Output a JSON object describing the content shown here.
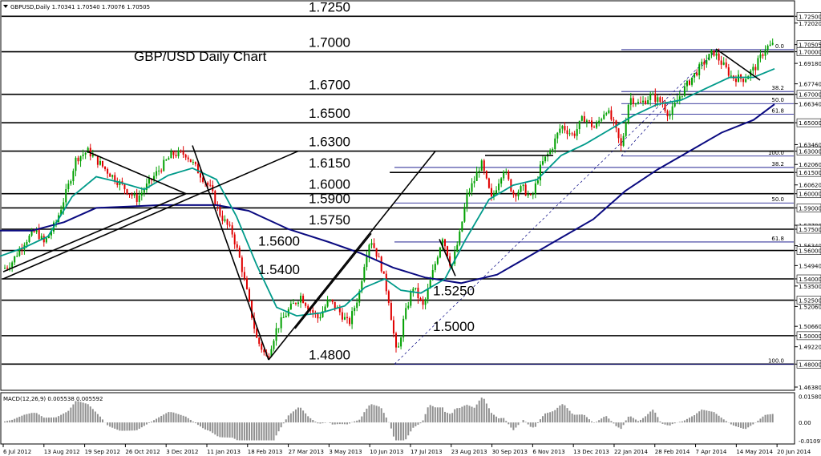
{
  "header": {
    "symbol_line": "GBPUSD,Daily  1.70341 1.70540 1.70076 1.70505",
    "menu_icon": "triangle-down-icon"
  },
  "chart_data": {
    "type": "candlestick",
    "title": "GBP/USD Daily Chart",
    "ylim": [
      1.4638,
      1.7325
    ],
    "y_ticks": [
      {
        "label": "1.72500",
        "value": 1.725,
        "boxed": true
      },
      {
        "label": "1.72020",
        "value": 1.7202,
        "boxed": false
      },
      {
        "label": "1.70505",
        "value": 1.70505,
        "boxed": true
      },
      {
        "label": "1.70000",
        "value": 1.7,
        "boxed": true
      },
      {
        "label": "1.69180",
        "value": 1.6918,
        "boxed": false
      },
      {
        "label": "1.67740",
        "value": 1.6774,
        "boxed": false
      },
      {
        "label": "1.67000",
        "value": 1.67,
        "boxed": true
      },
      {
        "label": "1.66340",
        "value": 1.6634,
        "boxed": false
      },
      {
        "label": "1.65000",
        "value": 1.65,
        "boxed": true
      },
      {
        "label": "1.63460",
        "value": 1.6346,
        "boxed": false
      },
      {
        "label": "1.63000",
        "value": 1.63,
        "boxed": true
      },
      {
        "label": "1.62060",
        "value": 1.6206,
        "boxed": false
      },
      {
        "label": "1.61500",
        "value": 1.615,
        "boxed": true
      },
      {
        "label": "1.60620",
        "value": 1.6062,
        "boxed": false
      },
      {
        "label": "1.60000",
        "value": 1.6,
        "boxed": true
      },
      {
        "label": "1.59000",
        "value": 1.59,
        "boxed": true
      },
      {
        "label": "1.57780",
        "value": 1.5778,
        "boxed": false
      },
      {
        "label": "1.57500",
        "value": 1.575,
        "boxed": true
      },
      {
        "label": "1.56340",
        "value": 1.5634,
        "boxed": false
      },
      {
        "label": "1.56000",
        "value": 1.56,
        "boxed": true
      },
      {
        "label": "1.54940",
        "value": 1.5494,
        "boxed": false
      },
      {
        "label": "1.54000",
        "value": 1.54,
        "boxed": true
      },
      {
        "label": "1.53500",
        "value": 1.535,
        "boxed": false
      },
      {
        "label": "1.52500",
        "value": 1.525,
        "boxed": true
      },
      {
        "label": "1.52060",
        "value": 1.5206,
        "boxed": false
      },
      {
        "label": "1.50660",
        "value": 1.5066,
        "boxed": false
      },
      {
        "label": "1.50000",
        "value": 1.5,
        "boxed": true
      },
      {
        "label": "1.49220",
        "value": 1.4922,
        "boxed": false
      },
      {
        "label": "1.48000",
        "value": 1.48,
        "boxed": true
      },
      {
        "label": "1.46380",
        "value": 1.4638,
        "boxed": false
      }
    ],
    "levels": [
      {
        "label": "1.7250",
        "value": 1.725,
        "x0": 0.0
      },
      {
        "label": "1.7000",
        "value": 1.7,
        "x0": 0.0
      },
      {
        "label": "1.6700",
        "value": 1.67,
        "x0": 0.0
      },
      {
        "label": "1.6500",
        "value": 1.65,
        "x0": 0.0
      },
      {
        "label": "1.6300",
        "value": 1.63,
        "x0": 0.0
      },
      {
        "label": "1.6150",
        "value": 1.615,
        "x0": 0.49
      },
      {
        "label": "1.6000",
        "value": 1.6,
        "x0": 0.0
      },
      {
        "label": "1.5900",
        "value": 1.59,
        "x0": 0.0
      },
      {
        "label": "1.5750",
        "value": 1.575,
        "x0": 0.0
      },
      {
        "label": "1.5600",
        "value": 1.56,
        "x0": 0.0
      },
      {
        "label": "1.5400",
        "value": 1.54,
        "x0": 0.0
      },
      {
        "label": "1.5250",
        "value": 1.525,
        "x0": 0.0
      },
      {
        "label": "1.5000",
        "value": 1.5,
        "x0": 0.0
      },
      {
        "label": "1.4800",
        "value": 1.48,
        "x0": 0.0
      }
    ],
    "x_dates": [
      "6 Jul 2012",
      "13 Aug 2012",
      "19 Sep 2012",
      "26 Oct 2012",
      "3 Dec 2012",
      "11 Jan 2013",
      "18 Feb 2013",
      "27 Mar 2013",
      "3 May 2013",
      "10 Jun 2013",
      "17 Jul 2013",
      "23 Aug 2013",
      "30 Sep 2013",
      "6 Nov 2013",
      "13 Dec 2013",
      "22 Jan 2014",
      "28 Feb 2014",
      "7 Apr 2014",
      "14 May 2014",
      "20 Jun 2014"
    ],
    "fib_labels": [
      {
        "label": "0.0",
        "value": 1.7015
      },
      {
        "label": "38.2",
        "value": 1.672
      },
      {
        "label": "50.0",
        "value": 1.6635
      },
      {
        "label": "61.8",
        "value": 1.656
      },
      {
        "label": "100.0",
        "value": 1.6265
      },
      {
        "label": "38.2",
        "value": 1.6185
      },
      {
        "label": "50.0",
        "value": 1.5935
      },
      {
        "label": "61.8",
        "value": 1.566
      },
      {
        "label": "100.0",
        "value": 1.48
      }
    ],
    "macd": {
      "label": "MACD(12,26,9) 0.005538 0.005592",
      "ticks": [
        {
          "label": "0.015802",
          "value": 0.015802
        },
        {
          "label": "0.00",
          "value": 0.0
        },
        {
          "label": "-0.010976",
          "value": -0.010976
        }
      ]
    },
    "price_path": [
      [
        0,
        1.545
      ],
      [
        15,
        1.552
      ],
      [
        30,
        1.566
      ],
      [
        45,
        1.574
      ],
      [
        55,
        1.565
      ],
      [
        70,
        1.58
      ],
      [
        85,
        1.605
      ],
      [
        95,
        1.625
      ],
      [
        110,
        1.63
      ],
      [
        130,
        1.618
      ],
      [
        150,
        1.607
      ],
      [
        170,
        1.596
      ],
      [
        185,
        1.607
      ],
      [
        200,
        1.618
      ],
      [
        215,
        1.628
      ],
      [
        232,
        1.628
      ],
      [
        247,
        1.616
      ],
      [
        262,
        1.604
      ],
      [
        275,
        1.585
      ],
      [
        290,
        1.572
      ],
      [
        300,
        1.552
      ],
      [
        310,
        1.525
      ],
      [
        320,
        1.498
      ],
      [
        333,
        1.484
      ],
      [
        345,
        1.505
      ],
      [
        360,
        1.518
      ],
      [
        375,
        1.528
      ],
      [
        385,
        1.52
      ],
      [
        397,
        1.512
      ],
      [
        410,
        1.525
      ],
      [
        422,
        1.518
      ],
      [
        435,
        1.508
      ],
      [
        448,
        1.53
      ],
      [
        455,
        1.553
      ],
      [
        462,
        1.569
      ],
      [
        475,
        1.55
      ],
      [
        485,
        1.525
      ],
      [
        495,
        1.485
      ],
      [
        503,
        1.51
      ],
      [
        515,
        1.535
      ],
      [
        528,
        1.52
      ],
      [
        540,
        1.545
      ],
      [
        552,
        1.57
      ],
      [
        563,
        1.548
      ],
      [
        573,
        1.57
      ],
      [
        582,
        1.598
      ],
      [
        592,
        1.61
      ],
      [
        600,
        1.622
      ],
      [
        613,
        1.596
      ],
      [
        628,
        1.618
      ],
      [
        640,
        1.6
      ],
      [
        652,
        1.604
      ],
      [
        663,
        1.596
      ],
      [
        675,
        1.62
      ],
      [
        688,
        1.632
      ],
      [
        700,
        1.648
      ],
      [
        715,
        1.641
      ],
      [
        728,
        1.654
      ],
      [
        742,
        1.646
      ],
      [
        756,
        1.66
      ],
      [
        766,
        1.648
      ],
      [
        775,
        1.632
      ],
      [
        785,
        1.668
      ],
      [
        798,
        1.663
      ],
      [
        812,
        1.669
      ],
      [
        826,
        1.664
      ],
      [
        835,
        1.655
      ],
      [
        848,
        1.669
      ],
      [
        862,
        1.681
      ],
      [
        876,
        1.691
      ],
      [
        890,
        1.7
      ],
      [
        900,
        1.692
      ],
      [
        913,
        1.682
      ],
      [
        928,
        1.681
      ],
      [
        942,
        1.689
      ],
      [
        955,
        1.703
      ],
      [
        966,
        1.705
      ]
    ],
    "ma_fast": [
      [
        0,
        1.556
      ],
      [
        30,
        1.562
      ],
      [
        60,
        1.57
      ],
      [
        90,
        1.598
      ],
      [
        120,
        1.612
      ],
      [
        150,
        1.608
      ],
      [
        180,
        1.603
      ],
      [
        210,
        1.613
      ],
      [
        240,
        1.618
      ],
      [
        270,
        1.61
      ],
      [
        295,
        1.584
      ],
      [
        320,
        1.55
      ],
      [
        345,
        1.52
      ],
      [
        370,
        1.514
      ],
      [
        400,
        1.516
      ],
      [
        430,
        1.521
      ],
      [
        455,
        1.534
      ],
      [
        480,
        1.54
      ],
      [
        500,
        1.532
      ],
      [
        525,
        1.53
      ],
      [
        555,
        1.54
      ],
      [
        580,
        1.567
      ],
      [
        610,
        1.596
      ],
      [
        640,
        1.606
      ],
      [
        670,
        1.61
      ],
      [
        700,
        1.627
      ],
      [
        730,
        1.635
      ],
      [
        760,
        1.645
      ],
      [
        790,
        1.655
      ],
      [
        820,
        1.663
      ],
      [
        850,
        1.666
      ],
      [
        880,
        1.674
      ],
      [
        910,
        1.682
      ],
      [
        940,
        1.682
      ],
      [
        966,
        1.688
      ]
    ],
    "ma_slow": [
      [
        0,
        1.574
      ],
      [
        40,
        1.574
      ],
      [
        80,
        1.58
      ],
      [
        120,
        1.59
      ],
      [
        160,
        1.591
      ],
      [
        200,
        1.592
      ],
      [
        240,
        1.592
      ],
      [
        270,
        1.592
      ],
      [
        310,
        1.588
      ],
      [
        360,
        1.575
      ],
      [
        410,
        1.566
      ],
      [
        450,
        1.558
      ],
      [
        490,
        1.548
      ],
      [
        530,
        1.541
      ],
      [
        575,
        1.537
      ],
      [
        620,
        1.543
      ],
      [
        660,
        1.556
      ],
      [
        700,
        1.569
      ],
      [
        740,
        1.582
      ],
      [
        780,
        1.602
      ],
      [
        820,
        1.617
      ],
      [
        860,
        1.63
      ],
      [
        900,
        1.643
      ],
      [
        940,
        1.652
      ],
      [
        966,
        1.663
      ]
    ]
  }
}
